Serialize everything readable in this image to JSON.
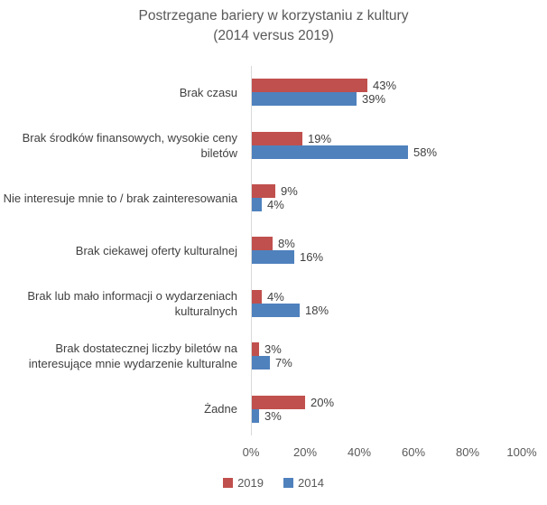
{
  "chart": {
    "title_line1": "Postrzegane bariery w korzystaniu z kultury",
    "title_line2": "(2014 versus 2019)"
  },
  "chart_data": {
    "type": "bar",
    "orientation": "horizontal",
    "title": "Postrzegane bariery w korzystaniu z kultury (2014 versus 2019)",
    "categories": [
      "Brak czasu",
      "Brak środków finansowych, wysokie ceny biletów",
      "Nie interesuje mnie to / brak zainteresowania",
      "Brak ciekawej oferty kulturalnej",
      "Brak lub mało informacji o wydarzeniach kulturalnych",
      "Brak dostatecznej liczby biletów na interesujące mnie wydarzenie kulturalne",
      "Żadne"
    ],
    "series": [
      {
        "name": "2019",
        "color": "#C0504D",
        "values": [
          43,
          19,
          9,
          8,
          4,
          3,
          20
        ]
      },
      {
        "name": "2014",
        "color": "#4F81BD",
        "values": [
          39,
          58,
          4,
          16,
          18,
          7,
          3
        ]
      }
    ],
    "value_suffix": "%",
    "data_labels": true,
    "xlabel": "",
    "ylabel": "",
    "xlim": [
      0,
      100
    ],
    "x_ticks": [
      "0%",
      "20%",
      "40%",
      "60%",
      "80%",
      "100%"
    ],
    "grid": false,
    "legend_position": "bottom",
    "axis_line_color": "#D9D9D9",
    "title_color": "#595959",
    "label_color": "#404040",
    "tick_color": "#595959"
  }
}
